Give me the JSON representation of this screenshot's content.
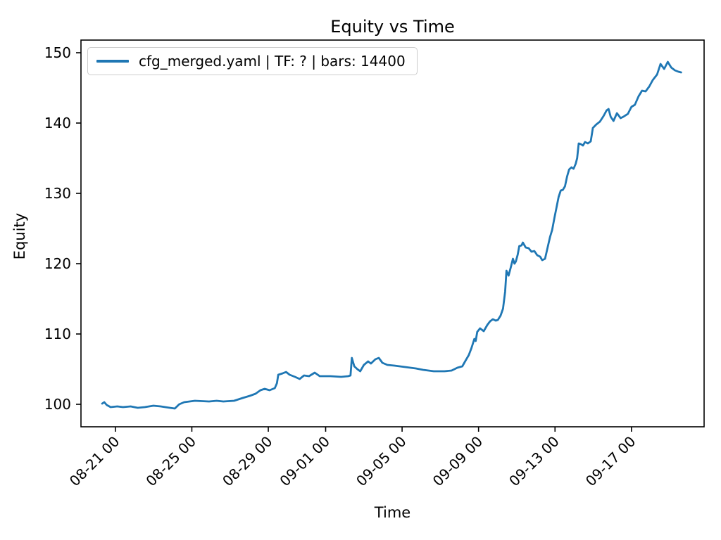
{
  "colors": {
    "line": "#1f77b4",
    "axis": "#000000",
    "legend_border": "#cccccc",
    "background": "#ffffff"
  },
  "chart_data": {
    "type": "line",
    "title": "Equity vs Time",
    "xlabel": "Time",
    "ylabel": "Equity",
    "grid": false,
    "x_unit": "days since 08-19 00:00",
    "xlim": [
      0.2,
      32.8
    ],
    "ylim": [
      96.8,
      151.8
    ],
    "x_ticks": [
      {
        "label": "08-21 00",
        "x": 2
      },
      {
        "label": "08-25 00",
        "x": 6
      },
      {
        "label": "08-29 00",
        "x": 10
      },
      {
        "label": "09-01 00",
        "x": 13
      },
      {
        "label": "09-05 00",
        "x": 17
      },
      {
        "label": "09-09 00",
        "x": 21
      },
      {
        "label": "09-13 00",
        "x": 25
      },
      {
        "label": "09-17 00",
        "x": 29
      }
    ],
    "y_ticks": [
      100,
      110,
      120,
      130,
      140,
      150
    ],
    "legend": {
      "position": "upper-left",
      "entries": [
        {
          "label": "cfg_merged.yaml | TF: ? | bars: 14400",
          "color": "#1f77b4"
        }
      ]
    },
    "series": [
      {
        "name": "cfg_merged.yaml | TF: ? | bars: 14400",
        "color": "#1f77b4",
        "points": [
          [
            1.31,
            100.1
          ],
          [
            1.42,
            100.3
          ],
          [
            1.55,
            99.9
          ],
          [
            1.75,
            99.6
          ],
          [
            2.1,
            99.7
          ],
          [
            2.4,
            99.6
          ],
          [
            2.8,
            99.7
          ],
          [
            3.17,
            99.5
          ],
          [
            3.54,
            99.6
          ],
          [
            3.99,
            99.8
          ],
          [
            4.37,
            99.7
          ],
          [
            4.85,
            99.5
          ],
          [
            5.11,
            99.4
          ],
          [
            5.34,
            100.0
          ],
          [
            5.6,
            100.3
          ],
          [
            6.16,
            100.5
          ],
          [
            6.9,
            100.4
          ],
          [
            7.3,
            100.5
          ],
          [
            7.65,
            100.4
          ],
          [
            8.21,
            100.5
          ],
          [
            8.66,
            100.9
          ],
          [
            9.03,
            101.2
          ],
          [
            9.33,
            101.5
          ],
          [
            9.59,
            102.0
          ],
          [
            9.81,
            102.2
          ],
          [
            10.07,
            102.0
          ],
          [
            10.34,
            102.3
          ],
          [
            10.45,
            103.0
          ],
          [
            10.52,
            104.2
          ],
          [
            10.75,
            104.4
          ],
          [
            10.93,
            104.6
          ],
          [
            11.12,
            104.2
          ],
          [
            11.4,
            103.9
          ],
          [
            11.64,
            103.6
          ],
          [
            11.87,
            104.1
          ],
          [
            12.13,
            104.0
          ],
          [
            12.43,
            104.5
          ],
          [
            12.69,
            104.0
          ],
          [
            13.25,
            104.0
          ],
          [
            13.81,
            103.9
          ],
          [
            14.18,
            104.0
          ],
          [
            14.3,
            104.1
          ],
          [
            14.37,
            106.6
          ],
          [
            14.5,
            105.4
          ],
          [
            14.66,
            105.0
          ],
          [
            14.81,
            104.7
          ],
          [
            15.0,
            105.6
          ],
          [
            15.22,
            106.1
          ],
          [
            15.37,
            105.8
          ],
          [
            15.6,
            106.4
          ],
          [
            15.78,
            106.6
          ],
          [
            15.97,
            105.9
          ],
          [
            16.23,
            105.6
          ],
          [
            16.6,
            105.5
          ],
          [
            17.16,
            105.3
          ],
          [
            17.72,
            105.1
          ],
          [
            18.1,
            104.9
          ],
          [
            18.66,
            104.7
          ],
          [
            19.22,
            104.7
          ],
          [
            19.59,
            104.8
          ],
          [
            19.89,
            105.2
          ],
          [
            20.15,
            105.4
          ],
          [
            20.34,
            106.3
          ],
          [
            20.49,
            107.0
          ],
          [
            20.63,
            108.0
          ],
          [
            20.7,
            108.6
          ],
          [
            20.78,
            109.3
          ],
          [
            20.85,
            109.0
          ],
          [
            20.93,
            110.3
          ],
          [
            21.08,
            110.8
          ],
          [
            21.27,
            110.4
          ],
          [
            21.46,
            111.3
          ],
          [
            21.6,
            111.8
          ],
          [
            21.75,
            112.1
          ],
          [
            21.9,
            111.9
          ],
          [
            22.01,
            112.0
          ],
          [
            22.15,
            112.6
          ],
          [
            22.28,
            113.6
          ],
          [
            22.39,
            116.0
          ],
          [
            22.46,
            119.0
          ],
          [
            22.57,
            118.3
          ],
          [
            22.69,
            119.5
          ],
          [
            22.8,
            120.7
          ],
          [
            22.88,
            120.0
          ],
          [
            22.95,
            120.3
          ],
          [
            23.05,
            121.3
          ],
          [
            23.13,
            122.5
          ],
          [
            23.25,
            122.6
          ],
          [
            23.32,
            123.0
          ],
          [
            23.47,
            122.3
          ],
          [
            23.62,
            122.2
          ],
          [
            23.77,
            121.7
          ],
          [
            23.92,
            121.8
          ],
          [
            24.07,
            121.2
          ],
          [
            24.22,
            121.0
          ],
          [
            24.33,
            120.5
          ],
          [
            24.48,
            120.7
          ],
          [
            24.63,
            122.5
          ],
          [
            24.74,
            123.8
          ],
          [
            24.85,
            124.8
          ],
          [
            24.97,
            126.5
          ],
          [
            25.08,
            128.0
          ],
          [
            25.19,
            129.5
          ],
          [
            25.3,
            130.4
          ],
          [
            25.41,
            130.5
          ],
          [
            25.52,
            131.0
          ],
          [
            25.63,
            132.4
          ],
          [
            25.74,
            133.4
          ],
          [
            25.86,
            133.7
          ],
          [
            25.97,
            133.5
          ],
          [
            26.08,
            134.2
          ],
          [
            26.16,
            135.0
          ],
          [
            26.24,
            137.1
          ],
          [
            26.35,
            137.0
          ],
          [
            26.46,
            136.8
          ],
          [
            26.57,
            137.3
          ],
          [
            26.72,
            137.1
          ],
          [
            26.87,
            137.4
          ],
          [
            26.98,
            139.3
          ],
          [
            27.16,
            139.8
          ],
          [
            27.35,
            140.2
          ],
          [
            27.54,
            141.0
          ],
          [
            27.7,
            141.8
          ],
          [
            27.8,
            142.0
          ],
          [
            27.91,
            140.9
          ],
          [
            28.06,
            140.3
          ],
          [
            28.24,
            141.4
          ],
          [
            28.43,
            140.7
          ],
          [
            28.58,
            140.9
          ],
          [
            28.81,
            141.3
          ],
          [
            29.0,
            142.3
          ],
          [
            29.18,
            142.6
          ],
          [
            29.37,
            143.8
          ],
          [
            29.55,
            144.6
          ],
          [
            29.74,
            144.5
          ],
          [
            29.93,
            145.2
          ],
          [
            30.11,
            146.1
          ],
          [
            30.34,
            146.9
          ],
          [
            30.52,
            148.4
          ],
          [
            30.71,
            147.7
          ],
          [
            30.9,
            148.7
          ],
          [
            31.08,
            147.9
          ],
          [
            31.27,
            147.5
          ],
          [
            31.46,
            147.3
          ],
          [
            31.6,
            147.2
          ]
        ]
      }
    ]
  }
}
